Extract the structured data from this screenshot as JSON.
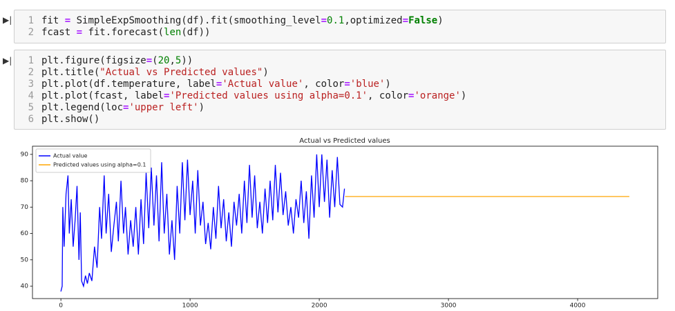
{
  "cells": [
    {
      "line_numbers": [
        1,
        2
      ],
      "lines": [
        "fit = SimpleExpSmoothing(df).fit(smoothing_level=0.1,optimized=False)",
        "fcast = fit.forecast(len(df))"
      ]
    },
    {
      "line_numbers": [
        1,
        2,
        3,
        4,
        5,
        6
      ],
      "lines": [
        "plt.figure(figsize=(20,5))",
        "plt.title(\"Actual vs Predicted values\")",
        "plt.plot(df.temperature, label='Actual value', color='blue')",
        "plt.plot(fcast, label='Predicted values using alpha=0.1', color='orange')",
        "plt.legend(loc='upper left')",
        "plt.show()"
      ]
    }
  ],
  "chart_data": {
    "type": "line",
    "title": "Actual vs Predicted values",
    "legend": "upper left",
    "xlim": [
      -220,
      4620
    ],
    "xticks": [
      0,
      1000,
      2000,
      3000,
      4000
    ],
    "ylim": [
      35.3,
      93.1
    ],
    "yticks": [
      40,
      50,
      60,
      70,
      80,
      90
    ],
    "series": [
      {
        "name": "Actual value",
        "color": "blue",
        "x": [
          0,
          10,
          15,
          25,
          40,
          55,
          65,
          80,
          95,
          110,
          125,
          140,
          150,
          160,
          175,
          190,
          205,
          220,
          240,
          260,
          280,
          300,
          315,
          335,
          350,
          370,
          390,
          410,
          430,
          445,
          465,
          485,
          500,
          520,
          540,
          560,
          580,
          600,
          620,
          640,
          660,
          680,
          700,
          720,
          740,
          760,
          780,
          800,
          820,
          840,
          860,
          880,
          900,
          920,
          940,
          960,
          980,
          1000,
          1020,
          1040,
          1060,
          1080,
          1100,
          1120,
          1140,
          1160,
          1180,
          1200,
          1220,
          1240,
          1260,
          1280,
          1300,
          1320,
          1340,
          1360,
          1380,
          1400,
          1420,
          1440,
          1460,
          1480,
          1500,
          1520,
          1540,
          1560,
          1580,
          1600,
          1620,
          1640,
          1660,
          1680,
          1700,
          1720,
          1740,
          1760,
          1780,
          1800,
          1820,
          1840,
          1860,
          1880,
          1900,
          1920,
          1940,
          1960,
          1980,
          2000,
          2020,
          2040,
          2060,
          2080,
          2100,
          2120,
          2140,
          2160,
          2180,
          2195
        ],
        "values": [
          38,
          40,
          70,
          55,
          75,
          82,
          60,
          73,
          55,
          65,
          78,
          50,
          68,
          42,
          40,
          44,
          41,
          45,
          42,
          55,
          47,
          70,
          58,
          82,
          60,
          75,
          53,
          63,
          72,
          57,
          80,
          60,
          70,
          52,
          65,
          55,
          70,
          52,
          73,
          56,
          83,
          62,
          85,
          63,
          82,
          57,
          87,
          60,
          75,
          52,
          65,
          50,
          78,
          60,
          87,
          65,
          88,
          67,
          80,
          60,
          84,
          63,
          72,
          56,
          64,
          54,
          70,
          58,
          78,
          62,
          73,
          57,
          68,
          55,
          72,
          63,
          75,
          60,
          80,
          64,
          86,
          66,
          82,
          62,
          72,
          60,
          77,
          64,
          80,
          65,
          86,
          68,
          83,
          67,
          76,
          63,
          70,
          60,
          73,
          66,
          80,
          64,
          76,
          58,
          82,
          66,
          90,
          70,
          90,
          72,
          88,
          66,
          84,
          70,
          89,
          71,
          70,
          77
        ]
      },
      {
        "name": "Predicted values using alpha=0.1",
        "color": "orange",
        "x": [
          2200,
          4400
        ],
        "values": [
          74,
          74
        ]
      }
    ]
  }
}
